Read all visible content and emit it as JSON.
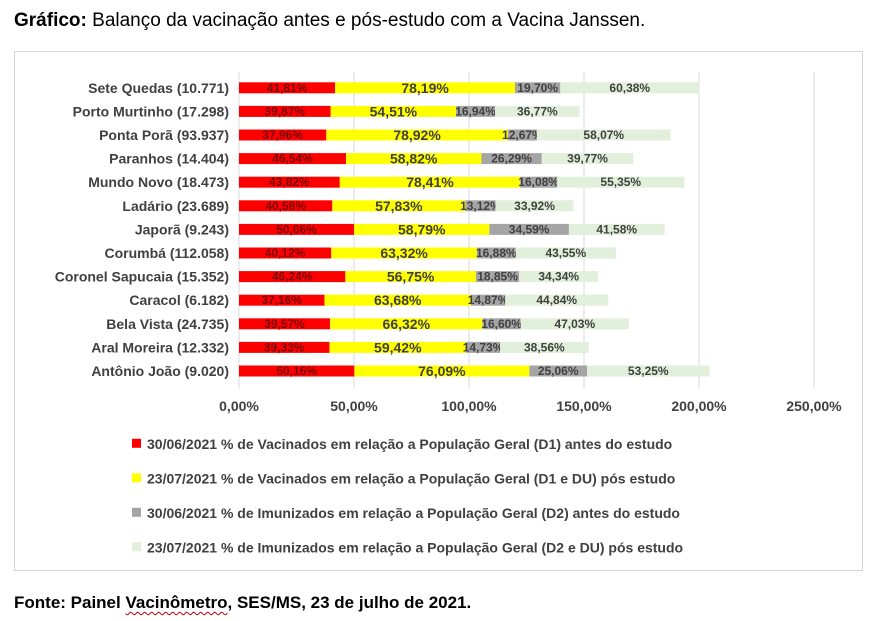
{
  "caption": {
    "label": "Gráfico:",
    "text": "Balanço da vacinação antes e pós-estudo com a Vacina Janssen."
  },
  "source": {
    "label": "Fonte: Painel ",
    "underlined": "Vacinômetro",
    "rest": ", SES/MS, 23 de julho de 2021."
  },
  "chart_data": {
    "type": "bar",
    "orientation": "horizontal",
    "stacked": true,
    "categories": [
      "Sete Quedas (10.771)",
      "Porto Murtinho (17.298)",
      "Ponta Porã (93.937)",
      "Paranhos (14.404)",
      "Mundo Novo (18.473)",
      "Ladário (23.689)",
      "Japorã (9.243)",
      "Corumbá (112.058)",
      "Coronel Sapucaia (15.352)",
      "Caracol (6.182)",
      "Bela Vista  (24.735)",
      "Aral Moreira (12.332)",
      "Antônio João (9.020)"
    ],
    "series": [
      {
        "name": "30/06/2021 % de Vacinados em relação a População Geral (D1) antes do estudo",
        "color": "#ff0000",
        "values": [
          41.81,
          39.87,
          37.96,
          46.54,
          43.82,
          40.58,
          50.06,
          40.12,
          46.24,
          37.16,
          39.57,
          39.33,
          50.16
        ],
        "labels": [
          "41,81%",
          "39,87%",
          "37,96%",
          "46,54%",
          "43,82%",
          "40,58%",
          "50,06%",
          "40,12%",
          "46,24%",
          "37,16%",
          "39,57%",
          "39,33%",
          "50,16%"
        ]
      },
      {
        "name": "23/07/2021 % de Vacinados em relação a População Geral (D1 e DU) pós estudo",
        "color": "#ffff00",
        "values": [
          78.19,
          54.51,
          78.92,
          58.82,
          78.41,
          57.83,
          58.79,
          63.32,
          56.75,
          63.68,
          66.32,
          59.42,
          76.09
        ],
        "labels": [
          "78,19%",
          "54,51%",
          "78,92%",
          "58,82%",
          "78,41%",
          "57,83%",
          "58,79%",
          "63,32%",
          "56,75%",
          "63,68%",
          "66,32%",
          "59,42%",
          "76,09%"
        ]
      },
      {
        "name": "30/06/2021 % de Imunizados em relação a População Geral (D2) antes do estudo",
        "color": "#a5a5a5",
        "values": [
          19.7,
          16.94,
          12.67,
          26.29,
          16.08,
          13.12,
          34.59,
          16.88,
          18.85,
          14.87,
          16.6,
          14.73,
          25.06
        ],
        "labels": [
          "19,70%",
          "16,94%",
          "12,67%",
          "26,29%",
          "16,08%",
          "13,12%",
          "34,59%",
          "16,88%",
          "18,85%",
          "14,87%",
          "16,60%",
          "14,73%",
          "25,06%"
        ]
      },
      {
        "name": "23/07/2021 % de Imunizados em relação a População Geral (D2 e DU) pós estudo",
        "color": "#e2efda",
        "values": [
          60.38,
          36.77,
          58.07,
          39.77,
          55.35,
          33.92,
          41.58,
          43.55,
          34.34,
          44.84,
          47.03,
          38.56,
          53.25
        ],
        "labels": [
          "60,38%",
          "36,77%",
          "58,07%",
          "39,77%",
          "55,35%",
          "33,92%",
          "41,58%",
          "43,55%",
          "34,34%",
          "44,84%",
          "47,03%",
          "38,56%",
          "53,25%"
        ]
      }
    ],
    "xlim": [
      0,
      250
    ],
    "xticks": [
      "0,00%",
      "50,00%",
      "100,00%",
      "150,00%",
      "200,00%",
      "250,00%"
    ],
    "grid": true,
    "legend": "bottom"
  }
}
